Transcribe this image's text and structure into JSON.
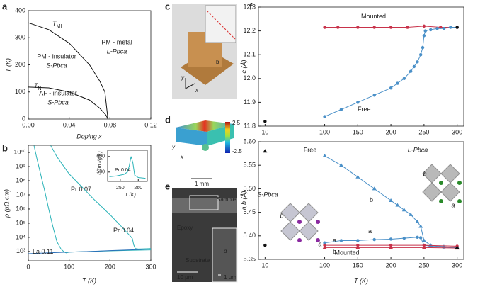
{
  "figure": {
    "panel_letters": [
      "a",
      "b",
      "c",
      "d",
      "e",
      "f"
    ],
    "photo_c": {
      "labels": [
        "b",
        "x",
        "y"
      ]
    },
    "photo_d": {
      "colorbar_labels": [
        "2.5",
        "-2.5"
      ],
      "scale": "1 mm",
      "axes": [
        "y",
        "x"
      ]
    },
    "photo_e": {
      "labels": [
        "Sample",
        "Epoxy",
        "Substrate",
        "10 μm",
        "1 μm",
        "d"
      ]
    }
  },
  "chart_data": [
    {
      "type": "line",
      "xlabel": "Doping x",
      "ylabel": "T (K)",
      "xlim": [
        0,
        0.12
      ],
      "xticks": [
        {
          "value": 0,
          "label": "0.00"
        },
        0.04,
        0.08,
        0.12
      ],
      "ylim": [
        0,
        400
      ],
      "yticks": [
        0,
        100,
        200,
        300,
        400
      ],
      "series": [
        {
          "name": "T",
          "subscript": "MI",
          "color": "#111111",
          "x": [
            0,
            0.02,
            0.04,
            0.06,
            0.07,
            0.075,
            0.078
          ],
          "values": [
            355,
            330,
            280,
            200,
            140,
            100,
            0
          ]
        },
        {
          "name": "T",
          "subscript": "N",
          "color": "#111111",
          "x": [
            0,
            0.02,
            0.04,
            0.06,
            0.07,
            0.076,
            0.078
          ],
          "values": [
            118,
            115,
            100,
            70,
            40,
            15,
            0
          ]
        }
      ],
      "annotations": [
        "PM - metal",
        "L-Pbca",
        "PM - insulator",
        "S-Pbca",
        "AF - insulator",
        "S-Pbca"
      ]
    },
    {
      "type": "line",
      "xlabel": "T (K)",
      "ylabel": "ρ (μΩ.cm)",
      "log_y": true,
      "xlim": [
        0,
        300
      ],
      "xticks": [
        0,
        100,
        200,
        300
      ],
      "ylim": [
        220,
        32000000000
      ],
      "yticks": [
        {
          "value": 1000,
          "label": "10³"
        },
        {
          "value": 10000,
          "label": "10⁴"
        },
        {
          "value": 100000,
          "label": "10⁵"
        },
        {
          "value": 1000000,
          "label": "10⁶"
        },
        {
          "value": 10000000,
          "label": "10⁷"
        },
        {
          "value": 100000000,
          "label": "10⁸"
        },
        {
          "value": 1000000000,
          "label": "10⁹"
        },
        {
          "value": 10000000000,
          "label": "10¹⁰"
        }
      ],
      "series": [
        {
          "name": "Pr 0.07",
          "color": "#2ab3b8",
          "x": [
            14,
            20,
            30,
            40,
            50,
            60,
            70,
            80,
            88,
            93,
            100,
            150,
            200,
            250,
            300
          ],
          "values": [
            30000000000,
            5000000000,
            300000000,
            20000000,
            1000000,
            60000,
            5000,
            1500,
            900,
            800,
            900,
            1000,
            1100,
            1200,
            1300
          ]
        },
        {
          "name": "Pr 0.04",
          "color": "#2ab3b8",
          "x": [
            55,
            70,
            100,
            130,
            160,
            200,
            230,
            250,
            255,
            258,
            262,
            270,
            300
          ],
          "values": [
            30000000000,
            5000000000,
            300000000,
            40000000,
            5000000,
            400000,
            50000,
            12000,
            8000,
            3000,
            1600,
            1500,
            1600
          ]
        },
        {
          "name": "La 0.11",
          "color": "#2a6fb8",
          "x": [
            0,
            50,
            100,
            150,
            200,
            250,
            300
          ],
          "values": [
            700,
            800,
            900,
            1000,
            1150,
            1300,
            1500
          ]
        }
      ]
    },
    {
      "type": "line",
      "xlabel": "T (K)",
      "ylabel": "C (mJ/g.K)",
      "xlim": [
        243,
        265
      ],
      "xticks": [
        250,
        260
      ],
      "ylim": [
        440,
        640
      ],
      "yticks": [
        500,
        600
      ],
      "series": [
        {
          "name": "Pr 0.04",
          "color": "#2ab3b8",
          "x": [
            244,
            248,
            252,
            254,
            255,
            256,
            257,
            258,
            260,
            264
          ],
          "values": [
            470,
            475,
            485,
            500,
            540,
            600,
            560,
            480,
            465,
            460
          ]
        }
      ]
    },
    {
      "type": "line",
      "ylabel": "c (Å)",
      "xlim": [
        0,
        310
      ],
      "xticks": [
        10,
        100,
        150,
        200,
        250,
        300
      ],
      "ylim": [
        11.8,
        12.3
      ],
      "yticks": [
        11.8,
        11.9,
        {
          "value": 12,
          "label": "12.0"
        },
        12.1,
        12.2,
        12.3
      ],
      "series": [
        {
          "name": "Mounted",
          "color": "#c8324a",
          "marker": "circle",
          "x": [
            100,
            120,
            150,
            175,
            200,
            225,
            250,
            275,
            300
          ],
          "values": [
            12.215,
            12.215,
            12.215,
            12.215,
            12.215,
            12.215,
            12.22,
            12.215,
            12.215
          ]
        },
        {
          "name": "Free",
          "color": "#4a90c8",
          "marker": "circle",
          "x": [
            100,
            125,
            150,
            175,
            200,
            210,
            220,
            230,
            235,
            240,
            245,
            248,
            250,
            252,
            260,
            270,
            280,
            290,
            300
          ],
          "values": [
            11.84,
            11.87,
            11.9,
            11.93,
            11.96,
            11.98,
            12.0,
            12.03,
            12.05,
            12.07,
            12.1,
            12.13,
            12.18,
            12.2,
            12.205,
            12.21,
            12.21,
            12.215,
            12.215
          ]
        },
        {
          "color": "#111111",
          "marker": "circle",
          "line": false,
          "x": [
            10,
            300
          ],
          "values": [
            11.82,
            12.215
          ]
        }
      ]
    },
    {
      "type": "line",
      "xlabel": "T (K)",
      "ylabel": "a,b (Å)",
      "xlim": [
        0,
        310
      ],
      "xticks": [
        10,
        100,
        150,
        200,
        250,
        300
      ],
      "ylim": [
        5.35,
        5.6
      ],
      "yticks": [
        5.35,
        {
          "value": 5.4,
          "label": "5.40"
        },
        5.45,
        {
          "value": 5.5,
          "label": "5.50"
        },
        5.55,
        {
          "value": 5.6,
          "label": "5.60"
        }
      ],
      "series": [
        {
          "name": "b",
          "color": "#4a90c8",
          "marker": "triangle",
          "x": [
            100,
            125,
            150,
            175,
            200,
            210,
            220,
            230,
            240,
            245,
            250,
            260,
            280,
            300
          ],
          "values": [
            5.57,
            5.55,
            5.525,
            5.5,
            5.475,
            5.465,
            5.455,
            5.445,
            5.43,
            5.42,
            5.39,
            5.38,
            5.377,
            5.375
          ]
        },
        {
          "name": "a",
          "color": "#4a90c8",
          "marker": "circle",
          "x": [
            100,
            125,
            150,
            175,
            200,
            220,
            240,
            245,
            250,
            260,
            280,
            300
          ],
          "values": [
            5.385,
            5.39,
            5.39,
            5.392,
            5.393,
            5.395,
            5.397,
            5.396,
            5.38,
            5.378,
            5.376,
            5.375
          ]
        },
        {
          "name": "a",
          "color": "#c8324a",
          "marker": "circle",
          "x": [
            100,
            150,
            200,
            250,
            300
          ],
          "values": [
            5.38,
            5.38,
            5.38,
            5.38,
            5.378
          ]
        },
        {
          "name": "b",
          "color": "#c8324a",
          "marker": "triangle",
          "x": [
            100,
            150,
            200,
            250,
            300
          ],
          "values": [
            5.375,
            5.375,
            5.375,
            5.375,
            5.374
          ]
        },
        {
          "color": "#111111",
          "marker": "triangle",
          "line": false,
          "x": [
            10,
            300
          ],
          "values": [
            5.58,
            5.375
          ]
        },
        {
          "color": "#111111",
          "marker": "circle",
          "line": false,
          "x": [
            10
          ],
          "values": [
            5.38
          ]
        }
      ],
      "annotations": [
        "Free",
        "Mounted",
        "S-Pbca",
        "L-Pbca",
        "b",
        "a",
        "b",
        "a"
      ]
    }
  ]
}
